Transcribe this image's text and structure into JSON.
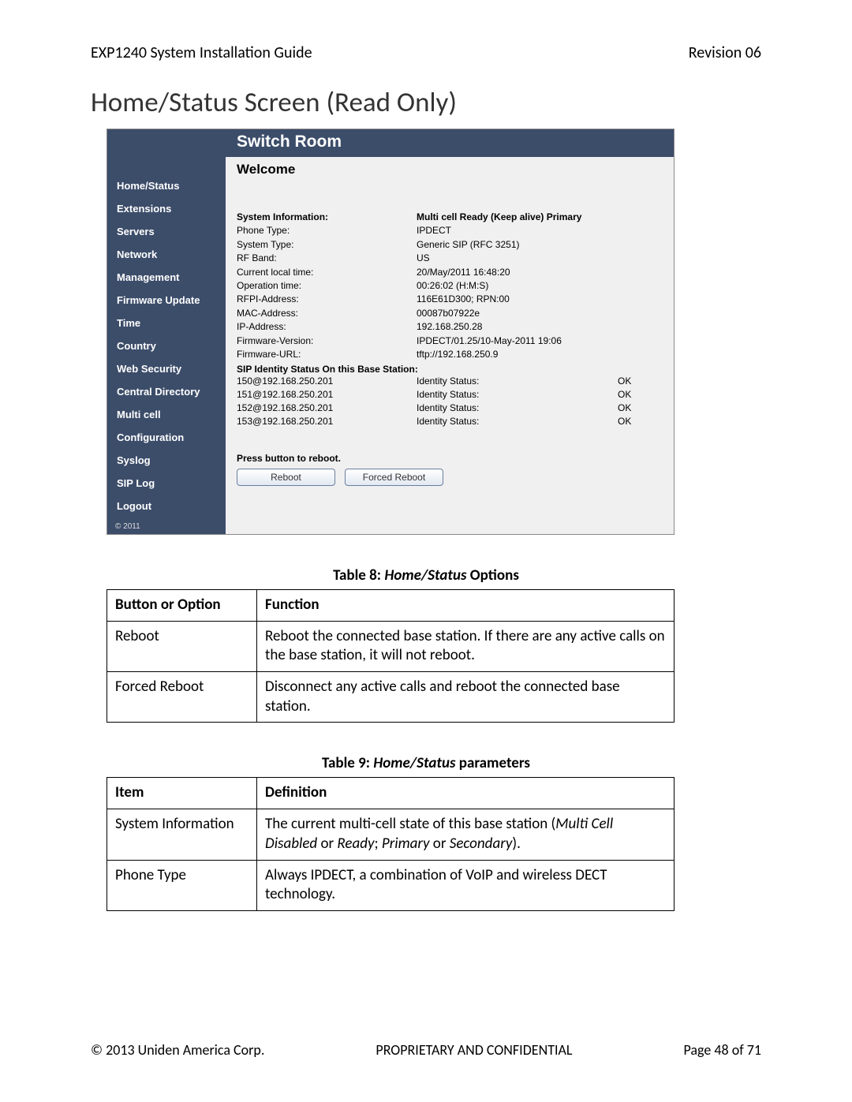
{
  "doc": {
    "header_left": "EXP1240 System Installation Guide",
    "header_right": "Revision 06",
    "section_heading": "Home/Status Screen (Read Only)",
    "footer_left": "© 2013 Uniden America Corp.",
    "footer_center": "PROPRIETARY AND CONFIDENTIAL",
    "footer_right": "Page 48 of 71"
  },
  "screenshot": {
    "colors": {
      "sidebar_bg": "#3c4d6a",
      "content_bg": "#f0f0f0",
      "button_border": "#6a7fa0"
    },
    "title": "Switch Room",
    "sidebar_items": [
      "Home/Status",
      "Extensions",
      "Servers",
      "Network",
      "Management",
      "Firmware Update",
      "Time",
      "Country",
      "Web Security",
      "Central Directory",
      "Multi cell",
      "Configuration",
      "Syslog",
      "SIP Log",
      "Logout"
    ],
    "sidebar_copyright": "© 2011",
    "welcome": "Welcome",
    "sys_heading_label": "System Information:",
    "sys_heading_value": "Multi cell Ready (Keep alive) Primary",
    "sys_rows": [
      {
        "label": "Phone Type:",
        "value": "IPDECT"
      },
      {
        "label": "System Type:",
        "value": "Generic SIP (RFC 3251)"
      },
      {
        "label": "RF Band:",
        "value": "US"
      },
      {
        "label": "Current local time:",
        "value": "20/May/2011 16:48:20"
      },
      {
        "label": "Operation time:",
        "value": "00:26:02 (H:M:S)"
      },
      {
        "label": "RFPI-Address:",
        "value": "116E61D300; RPN:00"
      },
      {
        "label": "MAC-Address:",
        "value": "00087b07922e"
      },
      {
        "label": "IP-Address:",
        "value": "192.168.250.28"
      },
      {
        "label": "Firmware-Version:",
        "value": "IPDECT/01.25/10-May-2011 19:06"
      },
      {
        "label": "Firmware-URL:",
        "value": "tftp://192.168.250.9"
      }
    ],
    "sip_heading": "SIP Identity Status On this Base Station:",
    "sip_rows": [
      {
        "identity": "150@192.168.250.201",
        "status_label": "Identity Status:",
        "status": "OK"
      },
      {
        "identity": "151@192.168.250.201",
        "status_label": "Identity Status:",
        "status": "OK"
      },
      {
        "identity": "152@192.168.250.201",
        "status_label": "Identity Status:",
        "status": "OK"
      },
      {
        "identity": "153@192.168.250.201",
        "status_label": "Identity Status:",
        "status": "OK"
      }
    ],
    "reboot_label": "Press button to reboot.",
    "reboot_button": "Reboot",
    "forced_reboot_button": "Forced Reboot"
  },
  "table8": {
    "caption_prefix": "Table 8: ",
    "caption_ital": "Home/Status",
    "caption_suffix": " Options",
    "headers": {
      "a": "Button or Option",
      "b": "Function"
    },
    "rows": [
      {
        "a": "Reboot",
        "b": "Reboot the connected base station. If there are any active calls on the base station, it will not reboot."
      },
      {
        "a": "Forced Reboot",
        "b": "Disconnect any active calls and reboot the connected base station."
      }
    ]
  },
  "table9": {
    "caption_prefix": "Table 9: ",
    "caption_ital": "Home/Status",
    "caption_suffix": " parameters",
    "headers": {
      "a": "Item",
      "b": "Definition"
    },
    "rows": [
      {
        "a": "System Information",
        "b_prefix": "The current multi-cell state of this base station (",
        "b_ital1": "Multi Cell Disabled",
        "b_mid1": " or ",
        "b_ital2": "Ready",
        "b_mid2": "; ",
        "b_ital3": "Primary",
        "b_mid3": " or ",
        "b_ital4": "Secondary",
        "b_suffix": ")."
      },
      {
        "a": "Phone Type",
        "b": "Always IPDECT, a combination of VoIP and wireless DECT technology."
      }
    ]
  }
}
